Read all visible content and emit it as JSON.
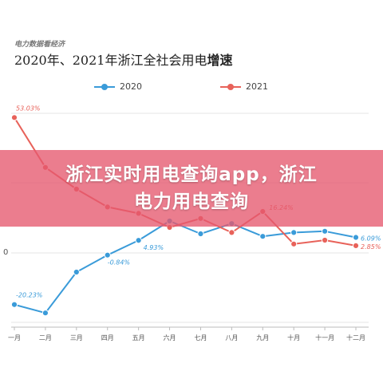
{
  "chart_data": {
    "type": "line",
    "subtitle": "电力数据看经济",
    "title_main": "2020年、2021年浙江全社会用电",
    "title_bold": "增速",
    "categories": [
      "一月",
      "二月",
      "三月",
      "四月",
      "五月",
      "六月",
      "七月",
      "八月",
      "九月",
      "十月",
      "十一月",
      "十二月"
    ],
    "series": [
      {
        "name": "2020",
        "color": "#3a9bd9",
        "values": [
          -20.23,
          -23.5,
          -7.5,
          -0.84,
          4.93,
          12.5,
          7.5,
          11.5,
          6.5,
          8.0,
          8.5,
          6.09
        ],
        "labels": {
          "0": "-20.23%",
          "3": "-0.84%",
          "4": "4.93%",
          "11": "6.09%"
        }
      },
      {
        "name": "2021",
        "color": "#e8625a",
        "values": [
          53.03,
          33.5,
          25.0,
          18.0,
          15.5,
          10.0,
          13.5,
          8.0,
          16.24,
          3.5,
          5.0,
          2.85
        ],
        "labels": {
          "0": "53.03%",
          "8": "16.24%",
          "11": "2.85%"
        }
      }
    ],
    "yticks": [
      "0"
    ],
    "ylim": [
      -30,
      60
    ],
    "grid": "horizontal",
    "legend": "top-center"
  },
  "banner": {
    "line1": "浙江实时用电查询app，浙江",
    "line2": "电力用电查询"
  },
  "colors": {
    "grid": "#e6e6e6",
    "banner": "#e6586e"
  }
}
